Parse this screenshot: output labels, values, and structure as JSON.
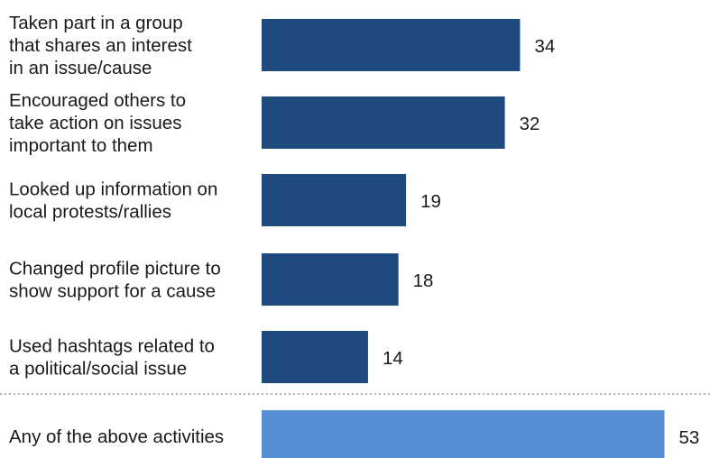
{
  "chart_data": {
    "type": "bar",
    "orientation": "horizontal",
    "categories": [
      [
        "Taken part in a group",
        "that shares an interest",
        "in an issue/cause"
      ],
      [
        "Encouraged others to",
        "take action on issues",
        "important to them"
      ],
      [
        "Looked up information on",
        "local protests/rallies"
      ],
      [
        "Changed profile picture to",
        "show support for a cause"
      ],
      [
        "Used hashtags related to",
        "a political/social issue"
      ],
      [
        "Any of the above activities"
      ]
    ],
    "values": [
      34,
      32,
      19,
      18,
      14,
      53
    ],
    "bar_colors": [
      "#1f4a7e",
      "#1f4a7e",
      "#1f4a7e",
      "#1f4a7e",
      "#1f4a7e",
      "#5590d6"
    ],
    "separator_before_index": 5,
    "grid": false,
    "legend": false
  }
}
